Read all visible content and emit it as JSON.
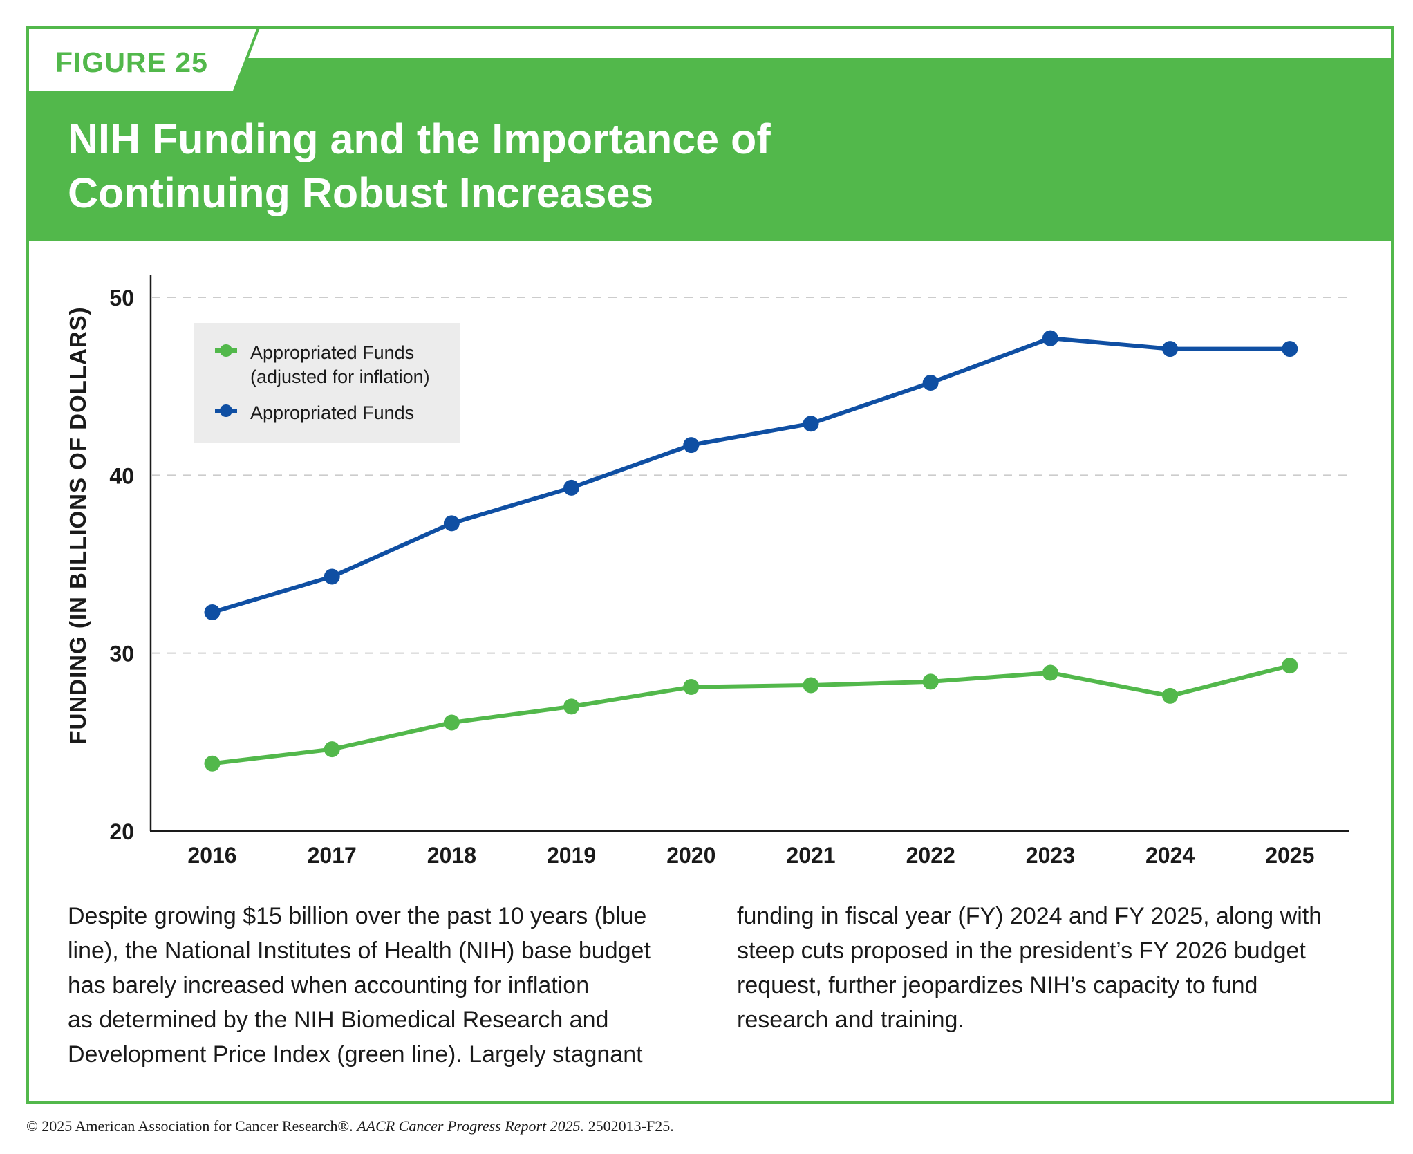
{
  "figure_label": "FIGURE 25",
  "title_lines": [
    "NIH Funding and the Importance of",
    "Continuing Robust Increases"
  ],
  "colors": {
    "green": "#52b84b",
    "blue": "#0f4fa3",
    "legend_bg": "#ececec",
    "grid": "#cccccc"
  },
  "chart_data": {
    "type": "line",
    "ylabel": "FUNDING (IN BILLIONS OF DOLLARS)",
    "xlabel": "",
    "x": [
      "2016",
      "2017",
      "2018",
      "2019",
      "2020",
      "2021",
      "2022",
      "2023",
      "2024",
      "2025"
    ],
    "ylim": [
      20,
      50
    ],
    "yticks": [
      20,
      30,
      40,
      50
    ],
    "grid": "horizontal dashed at 30, 40, 50",
    "legend_placement": "top-left",
    "series": [
      {
        "name": "Appropriated Funds (adjusted for inflation)",
        "legend_lines": [
          "Appropriated Funds",
          "(adjusted for inflation)"
        ],
        "color": "#52b84b",
        "values": [
          23.8,
          24.6,
          26.1,
          27.0,
          28.1,
          28.2,
          28.4,
          28.9,
          27.6,
          29.3
        ]
      },
      {
        "name": "Appropriated Funds",
        "legend_lines": [
          "Appropriated Funds"
        ],
        "color": "#0f4fa3",
        "values": [
          32.3,
          34.3,
          37.3,
          39.3,
          41.7,
          42.9,
          45.2,
          47.7,
          47.1,
          47.1
        ]
      }
    ]
  },
  "caption": {
    "col1_lines": [
      "Despite growing $15 billion over the past 10 years (blue",
      "line), the National Institutes of Health (NIH) base budget",
      "has barely increased when accounting for inflation",
      "as determined by the NIH Biomedical Research and",
      "Development Price Index (green line). Largely stagnant"
    ],
    "col2_lines": [
      "funding in fiscal year (FY) 2024 and FY 2025, along with",
      "steep cuts proposed in the president’s FY 2026 budget",
      "request, further jeopardizes NIH’s capacity to fund",
      "research and training."
    ]
  },
  "footer": {
    "prefix": "© 2025 American Association for Cancer Research®. ",
    "report": "AACR Cancer Progress Report 2025.",
    "suffix": " 2502013-F25."
  }
}
